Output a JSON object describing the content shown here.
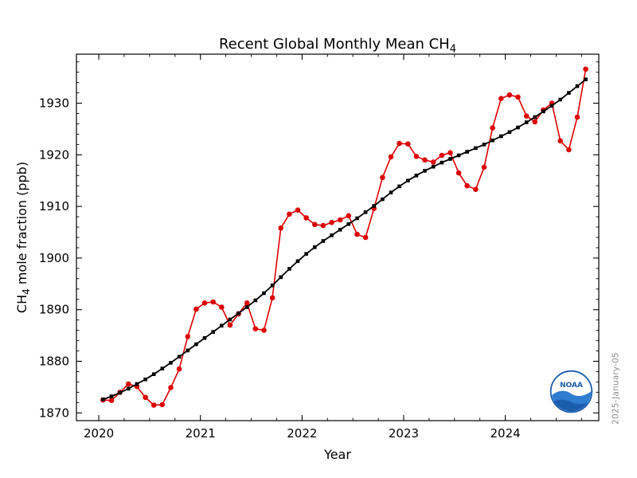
{
  "title": {
    "main": "Recent Global Monthly Mean CH",
    "sub": "4"
  },
  "xlabel": "Year",
  "ylabel": {
    "pre": "CH",
    "sub": "4",
    "post": " mole fraction (ppb)"
  },
  "datestamp": "2025-January-05",
  "logo": {
    "label": "NOAA"
  },
  "colors": {
    "monthly_mean": "#dd0000",
    "trend": "#000000",
    "background": "#ffffff",
    "datestamp": "#8f8f8f",
    "noaa_blue": "#1a5dad"
  },
  "chart_data": {
    "type": "line",
    "title": "Recent Global Monthly Mean CH4",
    "xlabel": "Year",
    "ylabel": "CH4 mole fraction (ppb)",
    "grid": false,
    "legend": "none",
    "x_ticks": [
      2020,
      2021,
      2022,
      2023,
      2024
    ],
    "y_ticks": [
      1870,
      1880,
      1890,
      1900,
      1910,
      1920,
      1930
    ],
    "x_range": [
      2019.78,
      2024.92
    ],
    "y_range": [
      1868.5,
      1939.5
    ],
    "x_minor_step": 0.25,
    "y_minor_step": 2,
    "start": {
      "year": 2020,
      "month": 1
    },
    "sampling": "monthly",
    "series": [
      {
        "name": "monthly-mean",
        "label": "Monthly mean",
        "color": "#dd0000",
        "marker": "circle",
        "values": [
          1872.5,
          1872.4,
          1874.0,
          1875.6,
          1875.1,
          1873.0,
          1871.5,
          1871.6,
          1874.9,
          1878.5,
          1884.8,
          1890.1,
          1891.3,
          1891.5,
          1890.5,
          1887.0,
          1889.2,
          1891.3,
          1886.3,
          1886.0,
          1892.3,
          1905.8,
          1908.5,
          1909.3,
          1907.8,
          1906.5,
          1906.3,
          1906.9,
          1907.4,
          1908.2,
          1904.6,
          1904.0,
          1909.6,
          1915.6,
          1919.6,
          1922.2,
          1922.1,
          1919.7,
          1919.0,
          1918.6,
          1919.9,
          1920.4,
          1916.5,
          1914.0,
          1913.3,
          1917.6,
          1925.2,
          1930.9,
          1931.6,
          1931.2,
          1927.5,
          1926.4,
          1928.7,
          1930.0,
          1922.7,
          1921.0,
          1927.3,
          1936.6
        ]
      },
      {
        "name": "trend",
        "label": "Trend",
        "color": "#000000",
        "marker": "square",
        "values": [
          1872.6,
          1873.2,
          1873.9,
          1874.7,
          1875.6,
          1876.5,
          1877.5,
          1878.6,
          1879.7,
          1880.9,
          1882.1,
          1883.3,
          1884.5,
          1885.7,
          1886.9,
          1888.1,
          1889.3,
          1890.5,
          1891.8,
          1893.2,
          1894.7,
          1896.3,
          1897.9,
          1899.4,
          1900.8,
          1902.1,
          1903.3,
          1904.4,
          1905.5,
          1906.6,
          1907.7,
          1908.9,
          1910.1,
          1911.4,
          1912.7,
          1913.9,
          1915.0,
          1916.0,
          1916.9,
          1917.7,
          1918.5,
          1919.2,
          1919.9,
          1920.6,
          1921.3,
          1922.0,
          1922.8,
          1923.6,
          1924.4,
          1925.3,
          1926.3,
          1927.3,
          1928.4,
          1929.5,
          1930.7,
          1932.0,
          1933.3,
          1934.6
        ]
      }
    ]
  }
}
